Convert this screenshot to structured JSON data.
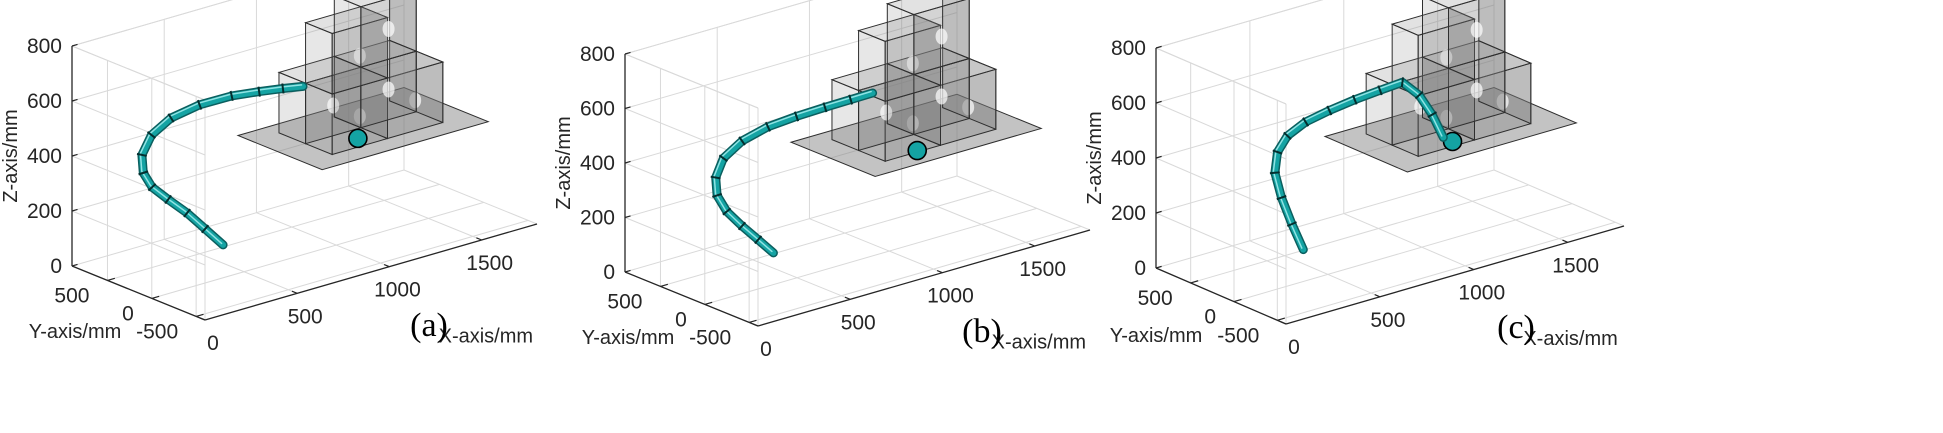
{
  "colors": {
    "robot": "#14A3A3",
    "robot_dark": "#0B5F5F",
    "box_fill": "#7A7A7A",
    "box_edge": "#2E2E2E",
    "grid": "#D9D9D9",
    "axis": "#262626"
  },
  "chart_data": [
    {
      "type": "3d-line",
      "panel_label": "(a)",
      "xlabel": "X-axis/mm",
      "ylabel": "Y-axis/mm",
      "zlabel": "Z-axis/mm",
      "x_ticks": [
        "0",
        "500",
        "1000",
        "1500"
      ],
      "y_ticks": [
        "-500",
        "0",
        "500"
      ],
      "z_ticks": [
        "0",
        "200",
        "400",
        "600",
        "800"
      ],
      "xlim": [
        0,
        1800
      ],
      "ylim": [
        -600,
        900
      ],
      "zlim": [
        0,
        800
      ],
      "grid": true,
      "series": [
        {
          "x": [
            300,
            260,
            220,
            180,
            160,
            180,
            230,
            330,
            460,
            610,
            760,
            880,
            980,
            1060
          ],
          "y": [
            -180,
            -60,
            60,
            190,
            330,
            470,
            590,
            690,
            740,
            730,
            680,
            620,
            560,
            500
          ],
          "z": [
            160,
            210,
            260,
            300,
            330,
            360,
            400,
            440,
            470,
            490,
            500,
            500,
            500,
            500
          ]
        }
      ],
      "target": {
        "x": 1300,
        "y": 380,
        "z": 280
      }
    },
    {
      "type": "3d-line",
      "panel_label": "(b)",
      "xlabel": "X-axis/mm",
      "ylabel": "Y-axis/mm",
      "zlabel": "Z-axis/mm",
      "x_ticks": [
        "0",
        "500",
        "1000",
        "1500"
      ],
      "y_ticks": [
        "-500",
        "0",
        "500"
      ],
      "z_ticks": [
        "0",
        "200",
        "400",
        "600",
        "800"
      ],
      "xlim": [
        0,
        1800
      ],
      "ylim": [
        -600,
        900
      ],
      "zlim": [
        0,
        800
      ],
      "grid": true,
      "series": [
        {
          "x": [
            300,
            270,
            240,
            220,
            230,
            280,
            370,
            500,
            650,
            800,
            940,
            1060,
            1160
          ],
          "y": [
            -150,
            -40,
            80,
            210,
            340,
            460,
            560,
            620,
            640,
            630,
            600,
            560,
            520
          ],
          "z": [
            150,
            190,
            230,
            270,
            310,
            350,
            390,
            420,
            440,
            450,
            460,
            470,
            480
          ]
        }
      ],
      "target": {
        "x": 1320,
        "y": 350,
        "z": 260
      }
    },
    {
      "type": "3d-line",
      "panel_label": "(c)",
      "xlabel": "X-axis/mm",
      "ylabel": "Y-axis/mm",
      "zlabel": "Z-axis/mm",
      "x_ticks": [
        "0",
        "500",
        "1000",
        "1500"
      ],
      "y_ticks": [
        "-500",
        "0",
        "500"
      ],
      "z_ticks": [
        "0",
        "200",
        "400",
        "600",
        "800"
      ],
      "xlim": [
        0,
        1800
      ],
      "ylim": [
        -600,
        900
      ],
      "zlim": [
        0,
        800
      ],
      "grid": true,
      "series": [
        {
          "x": [
            300,
            290,
            290,
            310,
            370,
            460,
            580,
            720,
            860,
            990,
            1100,
            1180,
            1240,
            1290
          ],
          "y": [
            -150,
            -40,
            80,
            200,
            300,
            380,
            430,
            460,
            470,
            460,
            440,
            420,
            400,
            380
          ],
          "z": [
            150,
            230,
            310,
            380,
            430,
            460,
            480,
            490,
            500,
            510,
            520,
            460,
            380,
            290
          ]
        }
      ],
      "target": {
        "x": 1330,
        "y": 360,
        "z": 270
      }
    }
  ]
}
